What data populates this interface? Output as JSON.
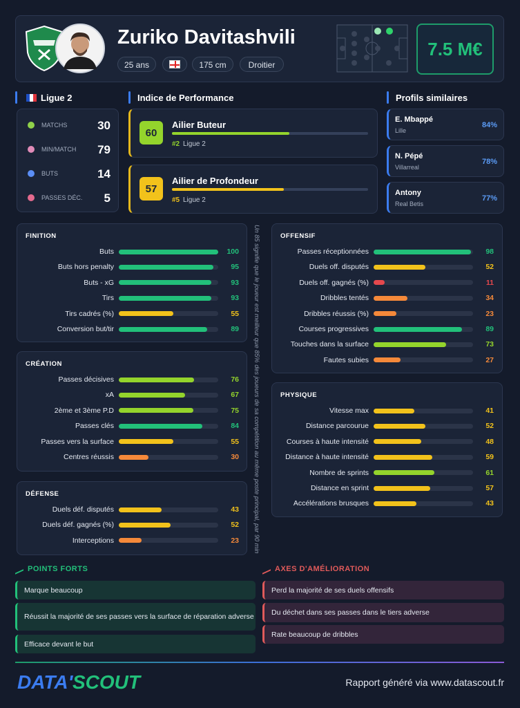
{
  "header": {
    "name": "Zuriko Davitashvili",
    "age": "25 ans",
    "height": "175 cm",
    "foot": "Droitier",
    "market_value": "7.5 M€"
  },
  "league": {
    "title": "Ligue 2",
    "stats": [
      {
        "label": "MATCHS",
        "value": 30
      },
      {
        "label": "MIN/MATCH",
        "value": 79
      },
      {
        "label": "BUTS",
        "value": 14
      },
      {
        "label": "PASSES DÉC.",
        "value": 5
      }
    ]
  },
  "performance": {
    "title": "Indice de Performance",
    "roles": [
      {
        "score": 60,
        "name": "Ailier Buteur",
        "rank": "#2",
        "league": "Ligue 2"
      },
      {
        "score": 57,
        "name": "Ailier de Profondeur",
        "rank": "#5",
        "league": "Ligue 2"
      }
    ]
  },
  "similar": {
    "title": "Profils similaires",
    "players": [
      {
        "name": "E. Mbappé",
        "club": "Lille",
        "match": "84%"
      },
      {
        "name": "N. Pépé",
        "club": "Villarreal",
        "match": "78%"
      },
      {
        "name": "Antony",
        "club": "Real Betis",
        "match": "77%"
      }
    ]
  },
  "sections": [
    {
      "title": "FINITION",
      "metrics": [
        {
          "label": "Buts",
          "value": 100
        },
        {
          "label": "Buts hors penalty",
          "value": 95
        },
        {
          "label": "Buts - xG",
          "value": 93
        },
        {
          "label": "Tirs",
          "value": 93
        },
        {
          "label": "Tirs cadrés (%)",
          "value": 55
        },
        {
          "label": "Conversion but/tir",
          "value": 89
        }
      ]
    },
    {
      "title": "CRÉATION",
      "metrics": [
        {
          "label": "Passes décisives",
          "value": 76
        },
        {
          "label": "xA",
          "value": 67
        },
        {
          "label": "2ème et 3ème P.D",
          "value": 75
        },
        {
          "label": "Passes clés",
          "value": 84
        },
        {
          "label": "Passes vers la surface",
          "value": 55
        },
        {
          "label": "Centres réussis",
          "value": 30
        }
      ]
    },
    {
      "title": "DÉFENSE",
      "metrics": [
        {
          "label": "Duels déf. disputés",
          "value": 43
        },
        {
          "label": "Duels déf. gagnés (%)",
          "value": 52
        },
        {
          "label": "Interceptions",
          "value": 23
        }
      ]
    },
    {
      "title": "OFFENSIF",
      "metrics": [
        {
          "label": "Passes réceptionnées",
          "value": 98
        },
        {
          "label": "Duels off. disputés",
          "value": 52
        },
        {
          "label": "Duels off. gagnés (%)",
          "value": 11
        },
        {
          "label": "Dribbles tentés",
          "value": 34
        },
        {
          "label": "Dribbles réussis (%)",
          "value": 23
        },
        {
          "label": "Courses progressives",
          "value": 89
        },
        {
          "label": "Touches dans la surface",
          "value": 73
        },
        {
          "label": "Fautes subies",
          "value": 27
        }
      ]
    },
    {
      "title": "PHYSIQUE",
      "metrics": [
        {
          "label": "Vitesse max",
          "value": 41
        },
        {
          "label": "Distance parcourue",
          "value": 52
        },
        {
          "label": "Courses à haute intensité",
          "value": 48
        },
        {
          "label": "Distance à haute intensité",
          "value": 59
        },
        {
          "label": "Nombre de sprints",
          "value": 61
        },
        {
          "label": "Distance en sprint",
          "value": 57
        },
        {
          "label": "Accélérations brusques",
          "value": 43
        }
      ]
    }
  ],
  "percentile_note": "Un 85 signifie que le joueur est meilleur que 85% des joueurs de sa compétition au même poste principal, par 90 min",
  "strengths": {
    "title": "POINTS FORTS",
    "items": [
      "Marque beaucoup",
      "Réussit la majorité de ses passes vers la surface de réparation adverse",
      "Efficace devant le but"
    ]
  },
  "improvements": {
    "title": "AXES D'AMÉLIORATION",
    "items": [
      "Perd la majorité de ses duels offensifs",
      "Du déchet dans ses passes dans le tiers adverse",
      "Rate beaucoup de dribbles"
    ]
  },
  "footer": {
    "brand_left": "DATA'",
    "brand_right": "SCOUT",
    "report": "Rapport généré via www.datascout.fr"
  }
}
